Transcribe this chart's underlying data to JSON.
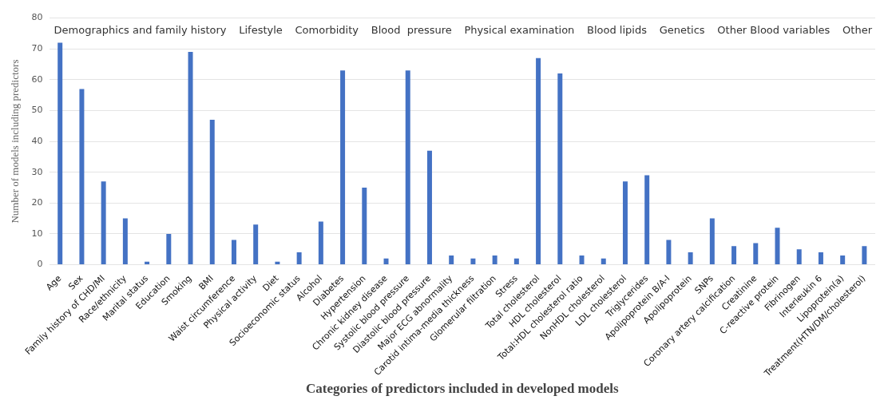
{
  "chart_data": {
    "type": "bar",
    "xlabel": "Categories of predictors included in developed models",
    "ylabel": "Number of models including predictors",
    "categories": [
      "Age",
      "Sex",
      "Family history of CHD/MI",
      "Race/ethnicity",
      "Marital status",
      "Education",
      "Smoking",
      "BMI",
      "Waist circumference",
      "Physical activity",
      "Diet",
      "Socioeconomic status",
      "Alcohol",
      "Diabetes",
      "Hypertension",
      "Chronic kidney disease",
      "Systolic blood pressure",
      "Diastolic blood pressure",
      "Major ECG abnormality",
      "Carotid intima-media thickness",
      "Glomerular filtration",
      "Stress",
      "Total cholesterol",
      "HDL cholesterol",
      "Total:HDL cholesterol ratio",
      "NonHDL cholesterol",
      "LDL cholesterol",
      "Triglycerides",
      "Apolipoprotein B/A-I",
      "Apolipoprotein",
      "SNPs",
      "Coronary artery calcification",
      "Creatinine",
      "C-reactive protein",
      "Fibrinogen",
      "Interleukin 6",
      "Lipoprotein(a)",
      "Treatment(HTN/DM/cholesterol)"
    ],
    "values": [
      72,
      57,
      27,
      15,
      1,
      10,
      69,
      47,
      8,
      13,
      1,
      4,
      14,
      63,
      25,
      2,
      63,
      37,
      3,
      2,
      3,
      2,
      67,
      62,
      3,
      2,
      27,
      29,
      8,
      4,
      15,
      6,
      7,
      12,
      5,
      4,
      3,
      6
    ],
    "color": "#4472c4",
    "ylim": [
      0,
      80
    ],
    "yticks": [
      0,
      10,
      20,
      30,
      40,
      50,
      60,
      70,
      80
    ],
    "grid": "y",
    "legend": false,
    "annotations": [
      "Demographics and family history",
      "Lifestyle",
      "Comorbidity",
      "Blood  pressure",
      "Physical examination",
      "Blood lipids",
      "Genetics",
      "Other Blood variables",
      "Other"
    ]
  }
}
